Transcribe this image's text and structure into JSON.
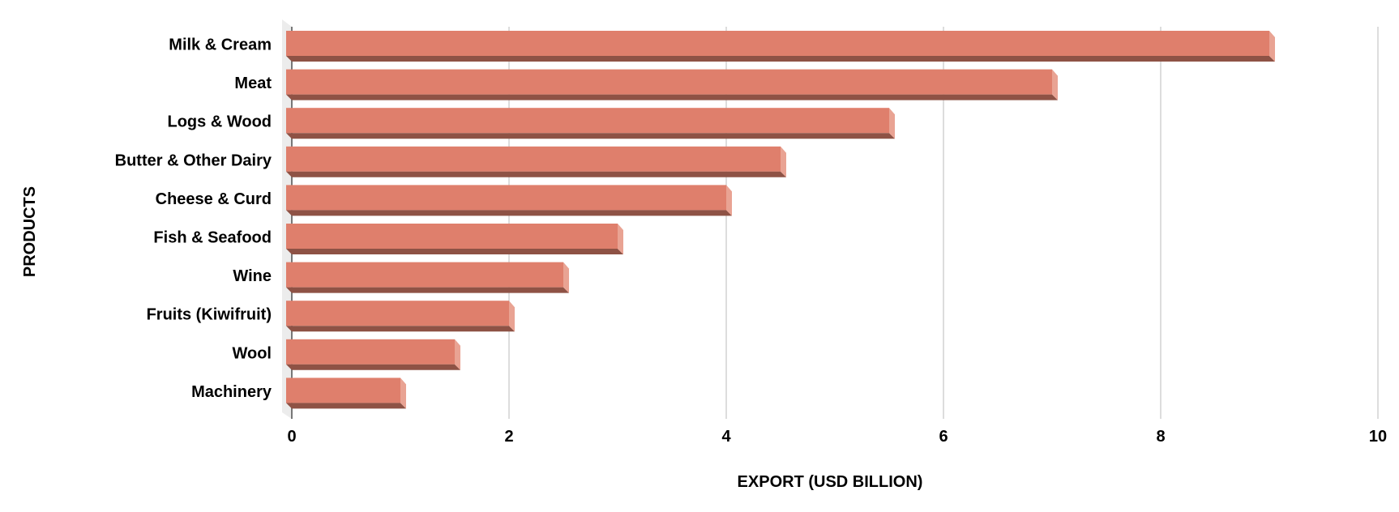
{
  "chart_data": {
    "type": "bar",
    "orientation": "horizontal",
    "style": "3d",
    "categories": [
      "Milk & Cream",
      "Meat",
      "Logs & Wood",
      "Butter & Other Dairy",
      "Cheese & Curd",
      "Fish & Seafood",
      "Wine",
      "Fruits (Kiwifruit)",
      "Wool",
      "Machinery"
    ],
    "values": [
      9,
      7,
      5.5,
      4.5,
      4,
      3,
      2.5,
      2,
      1.5,
      1
    ],
    "xlabel": "EXPORT (USD BILLION)",
    "ylabel": "PRODUCTS",
    "xlim": [
      0,
      10
    ],
    "xticks": [
      "0",
      "2",
      "4",
      "6",
      "8",
      "10"
    ],
    "grid": true,
    "colors": {
      "face": "#df7f6c",
      "shadow": "#8e5245",
      "side": "#e9a393",
      "grid": "#dddddd"
    }
  }
}
